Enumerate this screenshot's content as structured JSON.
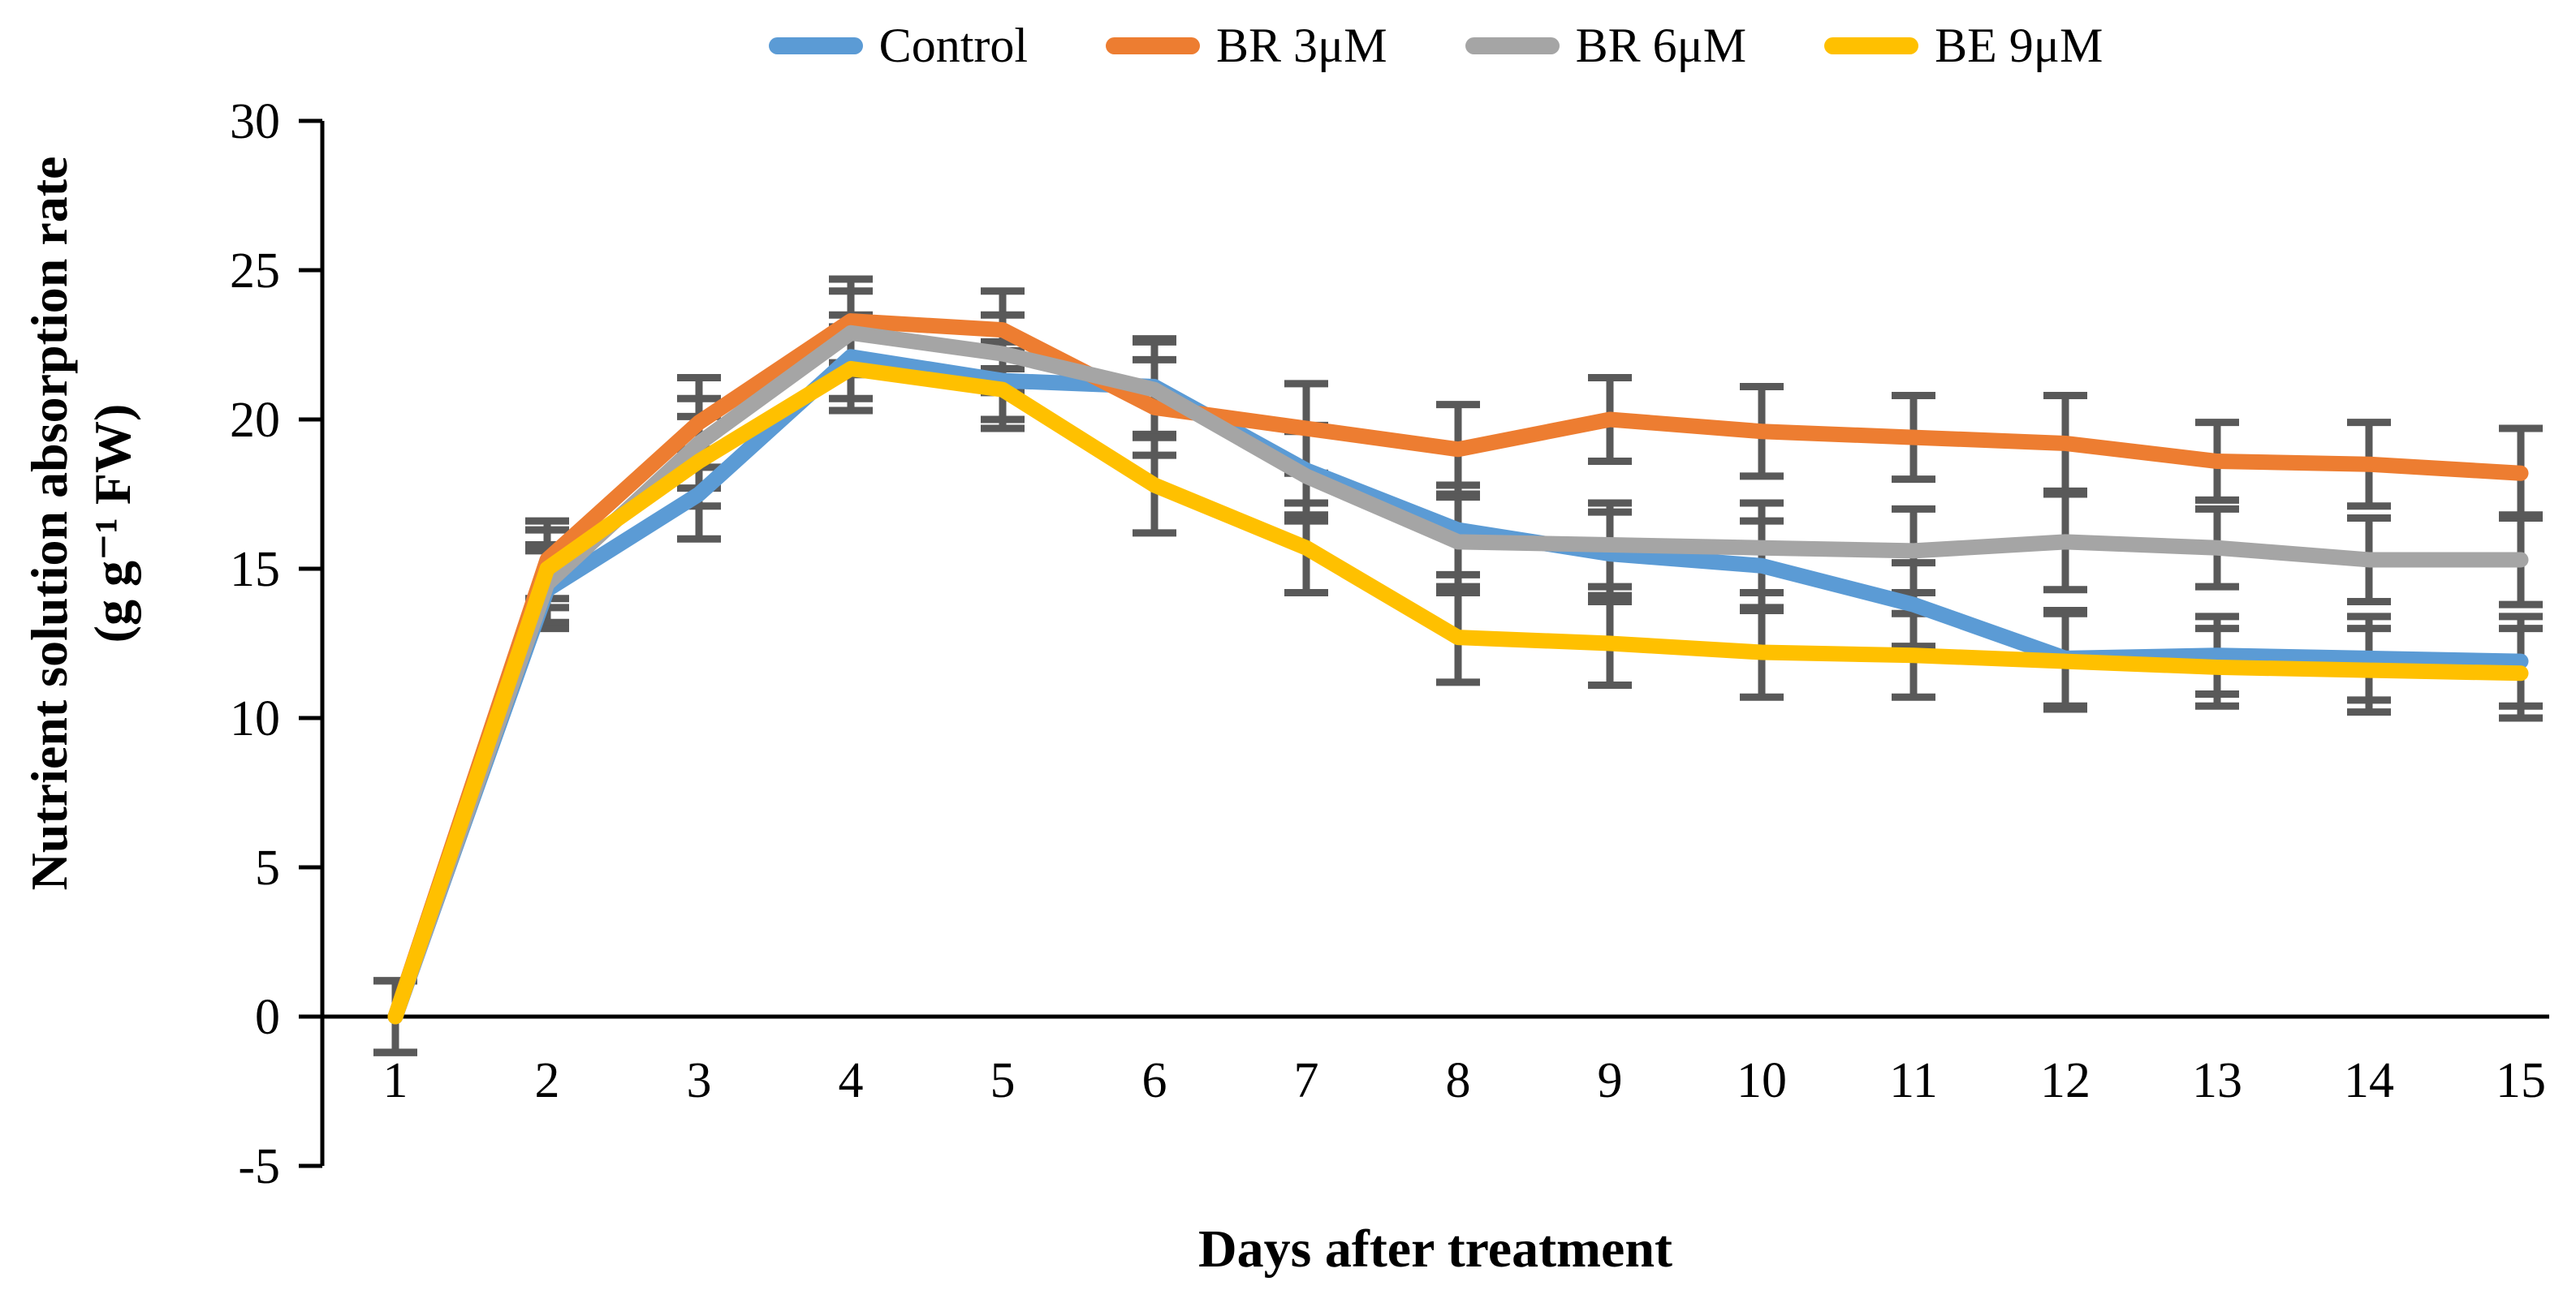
{
  "y_axis": {
    "title_line1": "Nutrient solution absorption rate",
    "title_line2": "(g g⁻¹ FW)",
    "ticks": [
      30,
      25,
      20,
      15,
      10,
      5,
      0,
      -5
    ]
  },
  "x_axis": {
    "title": "Days after treatment"
  },
  "colors": {
    "axis": "#000000",
    "error_bar": "#595959",
    "background": "#ffffff"
  },
  "chart_data": {
    "type": "line",
    "title": "",
    "xlabel": "Days after treatment",
    "ylabel": "Nutrient solution absorption rate (g g⁻¹ FW)",
    "x": [
      1,
      2,
      3,
      4,
      5,
      6,
      7,
      8,
      9,
      10,
      11,
      12,
      13,
      14,
      15
    ],
    "ylim": [
      -5,
      30
    ],
    "ytick_step": 5,
    "grid": false,
    "legend_position": "top-center",
    "error_bars": {
      "color": "#595959",
      "per_day": [
        1.2,
        1.3,
        1.5,
        1.4,
        1.3,
        1.6,
        1.5,
        1.5,
        1.4,
        1.5,
        1.4,
        1.6,
        1.3,
        1.4,
        1.5
      ]
    },
    "series": [
      {
        "name": "Control",
        "color": "#5B9BD5",
        "values": [
          0,
          14.3,
          17.5,
          22.1,
          21.3,
          21.1,
          18.3,
          16.3,
          15.5,
          15.1,
          13.8,
          12.0,
          12.1,
          12.0,
          11.9
        ]
      },
      {
        "name": "BR 3μM",
        "color": "#ED7D31",
        "values": [
          0,
          15.3,
          19.9,
          23.3,
          23.0,
          20.4,
          19.7,
          19.0,
          20.0,
          19.6,
          19.4,
          19.2,
          18.6,
          18.5,
          18.2
        ]
      },
      {
        "name": "BR 6μM",
        "color": "#A5A5A5",
        "values": [
          0,
          14.5,
          19.2,
          22.9,
          22.2,
          21.0,
          18.1,
          15.9,
          15.8,
          15.7,
          15.6,
          15.9,
          15.7,
          15.3,
          15.3
        ]
      },
      {
        "name": "BE 9μM",
        "color": "#FFC000",
        "values": [
          0,
          15.0,
          18.6,
          21.7,
          21.0,
          17.8,
          15.7,
          12.7,
          12.5,
          12.2,
          12.1,
          11.9,
          11.7,
          11.6,
          11.5
        ]
      }
    ]
  }
}
